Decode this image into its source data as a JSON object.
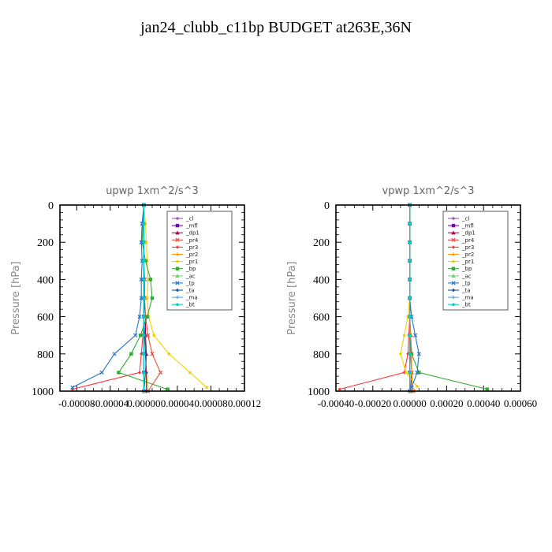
{
  "title": "jan24_clubb_c11bp  BUDGET at263E,36N",
  "chart_data": [
    {
      "type": "line",
      "title": "upwp   1xm^2/s^3",
      "xlabel": "",
      "ylabel": "Pressure [hPa]",
      "xlim": [
        -0.0001,
        0.00012
      ],
      "ylim": [
        1000,
        0
      ],
      "xticks": [
        -8e-05,
        -4e-05,
        0.0,
        4e-05,
        8e-05,
        0.00012
      ],
      "xtick_labels": [
        "-0.00008",
        "-0.00004",
        "0.00000",
        "0.00004",
        "0.00008",
        "0.00012"
      ],
      "yticks": [
        0,
        200,
        400,
        600,
        800,
        1000
      ],
      "ytick_labels": [
        "0",
        "200",
        "400",
        "600",
        "800",
        "1000"
      ],
      "grid": false,
      "legend_position": "top-right",
      "series": [
        {
          "name": "_cl",
          "color": "#9b59b6",
          "x": [
            0,
            0,
            0,
            0,
            0,
            0,
            0,
            0,
            0,
            0,
            0
          ],
          "y": [
            0,
            100,
            200,
            300,
            400,
            500,
            600,
            700,
            800,
            900,
            1000
          ]
        },
        {
          "name": "_mfl",
          "color": "#6a0dad",
          "x": [
            0,
            0,
            0,
            0,
            0,
            0,
            0,
            0,
            0,
            0,
            0
          ],
          "y": [
            0,
            100,
            200,
            300,
            400,
            500,
            600,
            700,
            800,
            900,
            1000
          ]
        },
        {
          "name": "_dp1",
          "color": "#b0004a",
          "x": [
            0,
            0,
            0,
            0,
            0,
            0,
            2e-06,
            2e-06,
            3e-06,
            2e-06,
            0
          ],
          "y": [
            0,
            100,
            200,
            300,
            400,
            500,
            600,
            700,
            800,
            900,
            1000
          ]
        },
        {
          "name": "_pr4",
          "color": "#e74c3c",
          "x": [
            0,
            0,
            0,
            0,
            1e-06,
            1e-06,
            2e-06,
            5e-06,
            1e-05,
            2e-05,
            5e-06
          ],
          "y": [
            0,
            100,
            200,
            300,
            400,
            500,
            600,
            700,
            800,
            900,
            1000
          ]
        },
        {
          "name": "_pr3",
          "color": "#ff3333",
          "x": [
            0,
            0,
            0,
            0,
            0,
            0,
            0,
            -1e-06,
            -3e-06,
            -5e-06,
            -8.5e-05
          ],
          "y": [
            0,
            100,
            200,
            300,
            400,
            500,
            600,
            700,
            800,
            900,
            990
          ]
        },
        {
          "name": "_pr2",
          "color": "#ff9900",
          "x": [
            0,
            0,
            0,
            0,
            0,
            0,
            0,
            1e-06,
            2e-06,
            3e-06,
            5e-06
          ],
          "y": [
            0,
            100,
            200,
            300,
            400,
            500,
            600,
            700,
            800,
            900,
            1000
          ]
        },
        {
          "name": "_pr1",
          "color": "#f0d000",
          "x": [
            0,
            2e-06,
            3e-06,
            4e-06,
            5e-06,
            4e-06,
            6e-06,
            1.2e-05,
            3e-05,
            5.5e-05,
            7.5e-05
          ],
          "y": [
            0,
            100,
            200,
            300,
            400,
            500,
            600,
            700,
            800,
            900,
            980
          ]
        },
        {
          "name": "_bp",
          "color": "#33aa33",
          "x": [
            0,
            -1e-06,
            -2e-06,
            2e-06,
            8e-06,
            1e-05,
            4e-06,
            -4e-06,
            -1.5e-05,
            -3e-05,
            2.8e-05
          ],
          "y": [
            0,
            100,
            200,
            300,
            400,
            500,
            600,
            700,
            800,
            900,
            990
          ]
        },
        {
          "name": "_ac",
          "color": "#66dd66",
          "x": [
            0,
            0,
            0,
            0,
            0,
            0,
            0,
            0,
            0,
            0,
            0
          ],
          "y": [
            0,
            100,
            200,
            300,
            400,
            500,
            600,
            700,
            800,
            900,
            1000
          ]
        },
        {
          "name": "_tp",
          "color": "#2277cc",
          "x": [
            0,
            -2e-06,
            -3e-06,
            -2e-06,
            -3e-06,
            -3e-06,
            -5e-06,
            -1e-05,
            -3.5e-05,
            -5e-05,
            -8.5e-05
          ],
          "y": [
            0,
            100,
            200,
            300,
            400,
            500,
            600,
            700,
            800,
            900,
            980
          ]
        },
        {
          "name": "_ta",
          "color": "#1a4fa0",
          "x": [
            0,
            0,
            0,
            0,
            0,
            0,
            0,
            1e-06,
            2e-06,
            3e-06,
            3e-06
          ],
          "y": [
            0,
            100,
            200,
            300,
            400,
            500,
            600,
            700,
            800,
            900,
            1000
          ]
        },
        {
          "name": "_ma",
          "color": "#44aadd",
          "x": [
            0,
            0,
            0,
            0,
            0,
            0,
            0,
            0,
            0,
            0,
            0
          ],
          "y": [
            0,
            100,
            200,
            300,
            400,
            500,
            600,
            700,
            800,
            900,
            1000
          ]
        },
        {
          "name": "_bt",
          "color": "#00cccc",
          "x": [
            0,
            0,
            0,
            0,
            0,
            0,
            0,
            0,
            0,
            0,
            0
          ],
          "y": [
            0,
            100,
            200,
            300,
            400,
            500,
            600,
            700,
            800,
            900,
            1000
          ]
        }
      ]
    },
    {
      "type": "line",
      "title": "vpwp   1xm^2/s^3",
      "xlabel": "",
      "ylabel": "Pressure [hPa]",
      "xlim": [
        -0.0004,
        0.0006
      ],
      "ylim": [
        1000,
        0
      ],
      "xticks": [
        -0.0004,
        -0.0002,
        0.0,
        0.0002,
        0.0004,
        0.0006
      ],
      "xtick_labels": [
        "-0.00040",
        "-0.00020",
        "0.00000",
        "0.00020",
        "0.00040",
        "0.00060"
      ],
      "yticks": [
        0,
        200,
        400,
        600,
        800,
        1000
      ],
      "ytick_labels": [
        "0",
        "200",
        "400",
        "600",
        "800",
        "1000"
      ],
      "grid": false,
      "legend_position": "top-right",
      "series": [
        {
          "name": "_cl",
          "color": "#9b59b6",
          "x": [
            0,
            0,
            0,
            0,
            0,
            0,
            0,
            0,
            0,
            0,
            0
          ],
          "y": [
            0,
            100,
            200,
            300,
            400,
            500,
            600,
            700,
            800,
            900,
            1000
          ]
        },
        {
          "name": "_mfl",
          "color": "#6a0dad",
          "x": [
            0,
            0,
            0,
            0,
            0,
            0,
            0,
            0,
            0,
            0,
            0
          ],
          "y": [
            0,
            100,
            200,
            300,
            400,
            500,
            600,
            700,
            800,
            900,
            1000
          ]
        },
        {
          "name": "_dp1",
          "color": "#b0004a",
          "x": [
            0,
            0,
            0,
            0,
            0,
            0,
            0,
            5e-06,
            1e-05,
            1e-05,
            5e-06
          ],
          "y": [
            0,
            100,
            200,
            300,
            400,
            500,
            600,
            700,
            800,
            900,
            1000
          ]
        },
        {
          "name": "_pr4",
          "color": "#e74c3c",
          "x": [
            0,
            0,
            0,
            0,
            0,
            0,
            0,
            0,
            5e-06,
            1e-05,
            2e-05
          ],
          "y": [
            0,
            100,
            200,
            300,
            400,
            500,
            600,
            700,
            800,
            900,
            1000
          ]
        },
        {
          "name": "_pr3",
          "color": "#ff3333",
          "x": [
            0,
            0,
            0,
            0,
            0,
            0,
            0,
            -5e-06,
            -1e-05,
            -3e-05,
            -0.00038
          ],
          "y": [
            0,
            100,
            200,
            300,
            400,
            500,
            600,
            700,
            800,
            900,
            990
          ]
        },
        {
          "name": "_pr2",
          "color": "#ff9900",
          "x": [
            0,
            0,
            0,
            0,
            0,
            0,
            0,
            5e-06,
            1e-05,
            1e-05,
            2e-05
          ],
          "y": [
            0,
            100,
            200,
            300,
            400,
            500,
            600,
            700,
            800,
            900,
            1000
          ]
        },
        {
          "name": "_pr1",
          "color": "#f0d000",
          "x": [
            0,
            0,
            0,
            0,
            0,
            0,
            -1e-05,
            -3e-05,
            -5e-05,
            -2e-05,
            4e-05
          ],
          "y": [
            0,
            100,
            200,
            300,
            400,
            500,
            600,
            700,
            800,
            900,
            975
          ]
        },
        {
          "name": "_bp",
          "color": "#33aa33",
          "x": [
            0,
            0,
            0,
            0,
            0,
            0,
            0,
            0,
            1e-05,
            5e-05,
            0.00042
          ],
          "y": [
            0,
            100,
            200,
            300,
            400,
            500,
            600,
            700,
            800,
            900,
            990
          ]
        },
        {
          "name": "_ac",
          "color": "#66dd66",
          "x": [
            0,
            0,
            0,
            0,
            0,
            0,
            0,
            0,
            0,
            0,
            0
          ],
          "y": [
            0,
            100,
            200,
            300,
            400,
            500,
            600,
            700,
            800,
            900,
            1000
          ]
        },
        {
          "name": "_tp",
          "color": "#2277cc",
          "x": [
            0,
            0,
            0,
            0,
            0,
            0,
            1e-05,
            3e-05,
            5e-05,
            4e-05,
            1e-05
          ],
          "y": [
            0,
            100,
            200,
            300,
            400,
            500,
            600,
            700,
            800,
            900,
            980
          ]
        },
        {
          "name": "_ta",
          "color": "#1a4fa0",
          "x": [
            0,
            0,
            0,
            0,
            0,
            0,
            0,
            0,
            0,
            0,
            0
          ],
          "y": [
            0,
            100,
            200,
            300,
            400,
            500,
            600,
            700,
            800,
            900,
            1000
          ]
        },
        {
          "name": "_ma",
          "color": "#44aadd",
          "x": [
            0,
            0,
            0,
            0,
            0,
            0,
            0,
            0,
            0,
            0,
            0
          ],
          "y": [
            0,
            100,
            200,
            300,
            400,
            500,
            600,
            700,
            800,
            900,
            1000
          ]
        },
        {
          "name": "_bt",
          "color": "#00cccc",
          "x": [
            0,
            0,
            0,
            0,
            0,
            0,
            0,
            0,
            0,
            0,
            0
          ],
          "y": [
            0,
            100,
            200,
            300,
            400,
            500,
            600,
            700,
            800,
            900,
            1000
          ]
        }
      ]
    }
  ]
}
